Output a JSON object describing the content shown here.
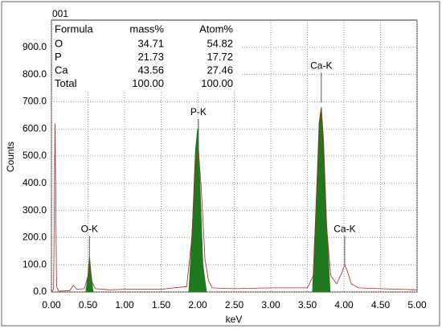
{
  "chart_data": {
    "type": "spectrum",
    "title": "001",
    "xlabel": "keV",
    "ylabel": "Counts",
    "xlim": [
      0,
      5
    ],
    "ylim": [
      0,
      1000
    ],
    "xticks": [
      {
        "value": 0,
        "label": "0.00"
      },
      {
        "value": 0.5,
        "label": "0.50"
      },
      {
        "value": 1,
        "label": "1.00"
      },
      {
        "value": 1.5,
        "label": "1.50"
      },
      {
        "value": 2,
        "label": "2.00"
      },
      {
        "value": 2.5,
        "label": "2.50"
      },
      {
        "value": 3,
        "label": "3.00"
      },
      {
        "value": 3.5,
        "label": "3.50"
      },
      {
        "value": 4,
        "label": "4.00"
      },
      {
        "value": 4.5,
        "label": "4.50"
      },
      {
        "value": 5,
        "label": "5.00"
      }
    ],
    "yticks": [
      {
        "value": 0,
        "label": "0.0"
      },
      {
        "value": 100,
        "label": "100.0"
      },
      {
        "value": 200,
        "label": "200.0"
      },
      {
        "value": 300,
        "label": "300.0"
      },
      {
        "value": 400,
        "label": "400.0"
      },
      {
        "value": 500,
        "label": "500.0"
      },
      {
        "value": 600,
        "label": "600.0"
      },
      {
        "value": 700,
        "label": "700.0"
      },
      {
        "value": 800,
        "label": "800.0"
      },
      {
        "value": 900,
        "label": "900.0"
      }
    ],
    "grid": true,
    "series": [
      {
        "color": "#b22222",
        "kind": "line",
        "x": [
          0,
          0.03,
          0.05,
          0.07,
          0.1,
          0.25,
          0.3,
          0.35,
          0.45,
          0.5,
          0.52,
          0.55,
          0.6,
          0.8,
          1.0,
          1.5,
          1.85,
          1.92,
          1.97,
          2.01,
          2.05,
          2.1,
          2.15,
          2.2,
          2.5,
          3.0,
          3.5,
          3.58,
          3.63,
          3.67,
          3.69,
          3.72,
          3.76,
          3.82,
          3.9,
          3.97,
          4.01,
          4.05,
          4.1,
          4.2,
          4.5,
          5.0
        ],
        "values": [
          0,
          10,
          620,
          20,
          3,
          5,
          25,
          10,
          12,
          60,
          110,
          40,
          12,
          8,
          10,
          10,
          20,
          200,
          480,
          520,
          380,
          120,
          40,
          15,
          12,
          15,
          15,
          60,
          400,
          640,
          670,
          500,
          250,
          60,
          30,
          70,
          100,
          75,
          30,
          15,
          12,
          8
        ]
      },
      {
        "color": "#1f7a1f",
        "kind": "area",
        "x": [
          0.47,
          0.5,
          0.52,
          0.54,
          0.57,
          1.2,
          1.88,
          1.93,
          1.97,
          2.0,
          2.03,
          2.07,
          2.12,
          3.0,
          3.57,
          3.62,
          3.66,
          3.69,
          3.72,
          3.76,
          3.81
        ],
        "values": [
          0,
          60,
          130,
          70,
          0,
          null,
          0,
          250,
          520,
          600,
          400,
          100,
          0,
          null,
          0,
          300,
          620,
          680,
          560,
          260,
          0
        ]
      }
    ],
    "annotations": [
      {
        "text": "O-K",
        "at": [
          0.52,
          230
        ]
      },
      {
        "text": "P-K",
        "at": [
          2.01,
          660
        ]
      },
      {
        "text": "Ca-K",
        "at": [
          3.69,
          830
        ]
      },
      {
        "text": "Ca-K",
        "at": [
          4.01,
          230
        ]
      }
    ],
    "table": {
      "columns": [
        "Formula",
        "mass%",
        "Atom%"
      ],
      "rows": [
        [
          "O",
          "34.71",
          "54.82"
        ],
        [
          "P",
          "21.73",
          "17.72"
        ],
        [
          "Ca",
          "43.56",
          "27.46"
        ],
        [
          "Total",
          "100.00",
          "100.00"
        ]
      ]
    }
  }
}
